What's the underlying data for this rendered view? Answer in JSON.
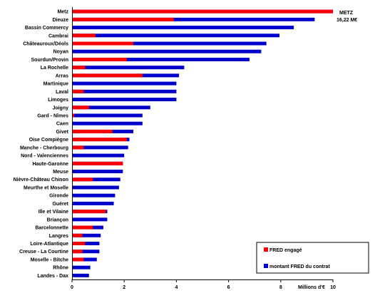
{
  "chart_data": {
    "type": "bar",
    "orientation": "horizontal",
    "stacking": "overlay",
    "categories": [
      "Metz",
      "Dieuze",
      "Bassin Commercy",
      "Cambrai",
      "Châteauroux/Déols",
      "Noyan",
      "Sourdun/Provin",
      "La Rochelle",
      "Arras",
      "Martinique",
      "Laval",
      "Limoges",
      "Joigny",
      "Gard - Nîmes",
      "Caen",
      "Givet",
      "Oise Compiègne",
      "Manche - Cherbourg",
      "Nord - Valenciennes",
      "Haute-Garonne",
      "Meuse",
      "Nièvre-Château Chinon",
      "Meurthe et Moselle",
      "Gironde",
      "Guéret",
      "Ille et Vilaine",
      "Briançon",
      "Barcelonnette",
      "Langres",
      "Loire-Atlantique",
      "Creuse - La Courtine",
      "Moselle - Bitche",
      "Rhône",
      "Landes - Dax"
    ],
    "series": [
      {
        "name": "montant FRED du contrat",
        "color": "#0000cc",
        "values": [
          10.0,
          9.3,
          8.5,
          7.95,
          7.45,
          7.25,
          6.8,
          4.3,
          4.1,
          4.0,
          4.0,
          4.0,
          3.0,
          2.7,
          2.7,
          2.35,
          2.2,
          2.15,
          2.0,
          1.95,
          1.95,
          1.85,
          1.8,
          1.65,
          1.6,
          1.35,
          1.35,
          1.2,
          1.1,
          1.05,
          1.05,
          0.95,
          0.7,
          0.65
        ]
      },
      {
        "name": "FRED engagé",
        "color": "#ff0000",
        "values": [
          10.0,
          3.9,
          0.0,
          0.9,
          2.35,
          0.0,
          2.1,
          0.5,
          2.7,
          0.0,
          0.45,
          0.0,
          0.65,
          0.08,
          0.0,
          1.55,
          2.1,
          0.45,
          0.0,
          1.95,
          0.0,
          0.8,
          0.0,
          0.0,
          0.0,
          1.3,
          0.0,
          0.8,
          0.4,
          0.5,
          0.4,
          0.45,
          0.0,
          0.0
        ]
      }
    ],
    "xlim": [
      0,
      10
    ],
    "xticks": [
      "0",
      "2",
      "4",
      "6",
      "8",
      "10"
    ],
    "xlabel": "Millions d'€",
    "annotation": [
      "METZ",
      "16,22 M€"
    ],
    "legend_position": "bottom-right",
    "grid": false
  }
}
